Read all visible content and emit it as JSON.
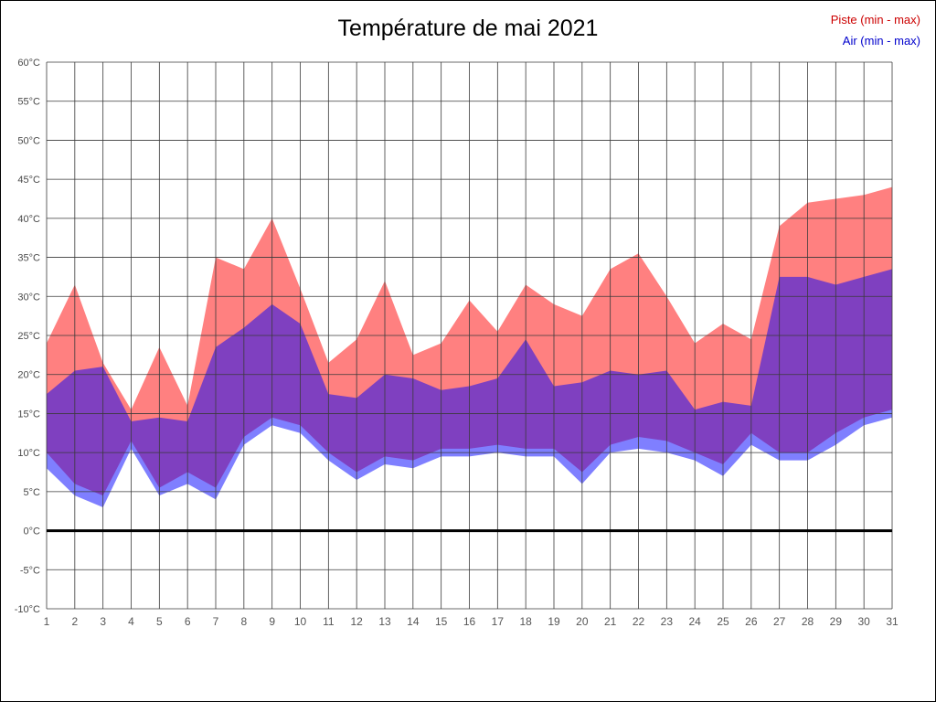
{
  "title": "Température de mai 2021",
  "legend": [
    {
      "label": "Piste (min - max)",
      "color": "#cc0000"
    },
    {
      "label": "Air (min - max)",
      "color": "#0000cc"
    }
  ],
  "chart_data": {
    "type": "area",
    "title": "Température de mai 2021",
    "x": [
      1,
      2,
      3,
      4,
      5,
      6,
      7,
      8,
      9,
      10,
      11,
      12,
      13,
      14,
      15,
      16,
      17,
      18,
      19,
      20,
      21,
      22,
      23,
      24,
      25,
      26,
      27,
      28,
      29,
      30,
      31
    ],
    "xlabel": "",
    "ylabel": "",
    "ylim": [
      -10,
      60
    ],
    "ytick_step": 5,
    "ytick_labels": [
      "60°C",
      "55°C",
      "50°C",
      "45°C",
      "40°C",
      "35°C",
      "30°C",
      "25°C",
      "20°C",
      "15°C",
      "10°C",
      "5°C",
      "0°C",
      "-5°C",
      "-10°C"
    ],
    "grid": true,
    "legend_position": "top-right",
    "series": [
      {
        "name": "Piste max",
        "values": [
          24,
          31.5,
          21.5,
          15.5,
          23.5,
          16,
          35,
          33.5,
          40,
          31,
          21.5,
          24.5,
          32,
          22.5,
          24,
          29.5,
          25.5,
          31.5,
          29,
          27.5,
          33.5,
          35.5,
          30,
          24,
          26.5,
          24.5,
          39,
          42,
          42.5,
          43,
          44
        ]
      },
      {
        "name": "Piste min",
        "values": [
          10,
          6,
          4.5,
          11.5,
          5.5,
          7.5,
          5.5,
          12,
          14.5,
          13.5,
          10,
          7.5,
          9.5,
          9,
          10.5,
          10.5,
          11,
          10.5,
          10.5,
          7.5,
          11,
          12,
          11.5,
          10,
          8.5,
          12.5,
          10,
          10,
          12.5,
          14.5,
          15.5
        ]
      },
      {
        "name": "Air max",
        "values": [
          17.5,
          20.5,
          21,
          14,
          14.5,
          14,
          23.5,
          26,
          29,
          26.5,
          17.5,
          17,
          20,
          19.5,
          18,
          18.5,
          19.5,
          24.5,
          18.5,
          19,
          20.5,
          20,
          20.5,
          15.5,
          16.5,
          16,
          32.5,
          32.5,
          31.5,
          32.5,
          33.5
        ]
      },
      {
        "name": "Air min",
        "values": [
          8,
          4.5,
          3,
          10.5,
          4.5,
          6,
          4,
          11,
          13.5,
          12.5,
          9,
          6.5,
          8.5,
          8,
          9.5,
          9.5,
          10,
          9.5,
          9.5,
          6,
          10,
          10.5,
          10,
          9,
          7,
          11,
          9,
          9,
          11,
          13.5,
          14.5
        ]
      }
    ],
    "colors": {
      "piste_fill": "#ff8080",
      "air_fill": "#8080ff",
      "overlap_fill": "#7f40bf",
      "zero_line": "#000000",
      "grid_line": "#3a3a3a"
    }
  }
}
